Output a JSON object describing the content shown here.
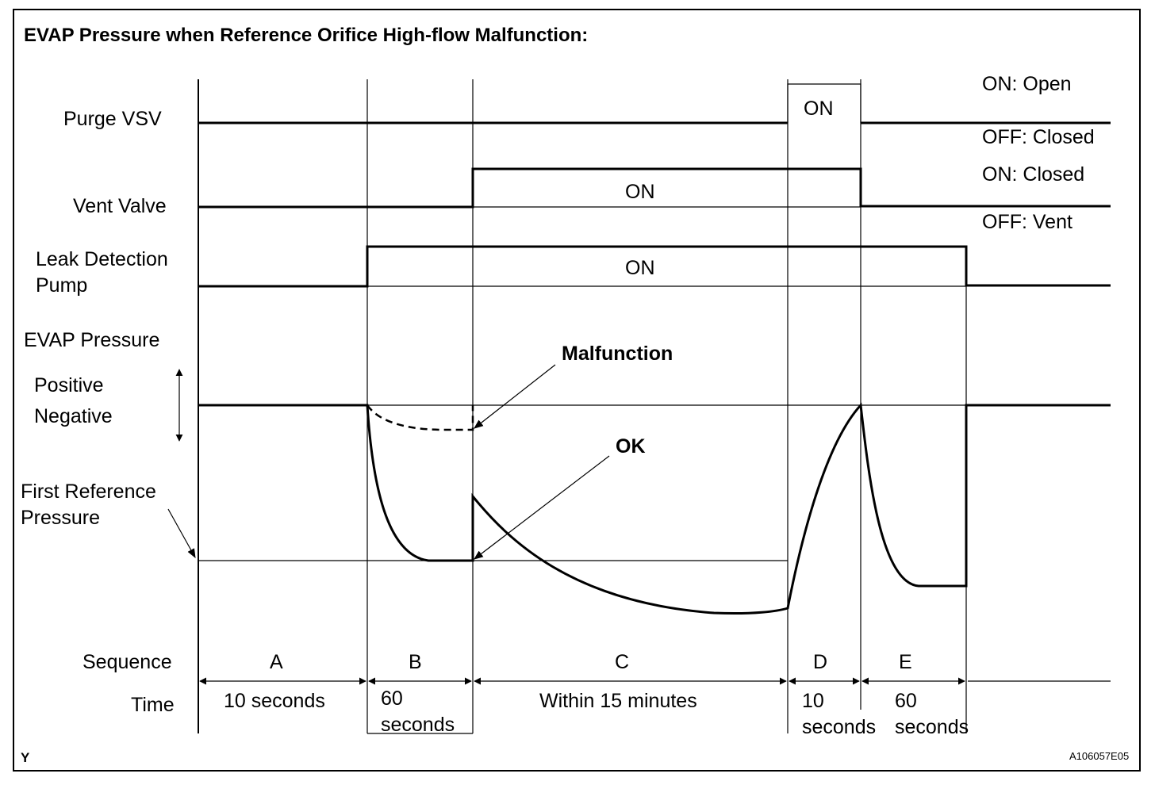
{
  "title": "EVAP Pressure when Reference Orifice High-flow Malfunction:",
  "signals": {
    "purge_vsv": "Purge VSV",
    "vent_valve": "Vent Valve",
    "leak_pump_line1": "Leak Detection",
    "leak_pump_line2": "Pump",
    "evap_pressure": "EVAP Pressure",
    "positive": "Positive",
    "negative": "Negative",
    "first_ref_line1": "First Reference",
    "first_ref_line2": "Pressure"
  },
  "states": {
    "on": "ON",
    "purge_on_desc": "ON: Open",
    "purge_off_desc": "OFF: Closed",
    "vent_on_desc": "ON: Closed",
    "vent_off_desc": "OFF: Vent"
  },
  "annotations": {
    "malfunction": "Malfunction",
    "ok": "OK"
  },
  "sequence": {
    "label": "Sequence",
    "time_label": "Time",
    "steps": [
      {
        "id": "A",
        "time_line1": "10 seconds",
        "time_line2": ""
      },
      {
        "id": "B",
        "time_line1": "60",
        "time_line2": "seconds"
      },
      {
        "id": "C",
        "time_line1": "Within 15 minutes",
        "time_line2": ""
      },
      {
        "id": "D",
        "time_line1": "10",
        "time_line2": "seconds"
      },
      {
        "id": "E",
        "time_line1": "60",
        "time_line2": "seconds"
      }
    ]
  },
  "footer": {
    "corner_mark": "Y",
    "figure_code": "A106057E05"
  }
}
